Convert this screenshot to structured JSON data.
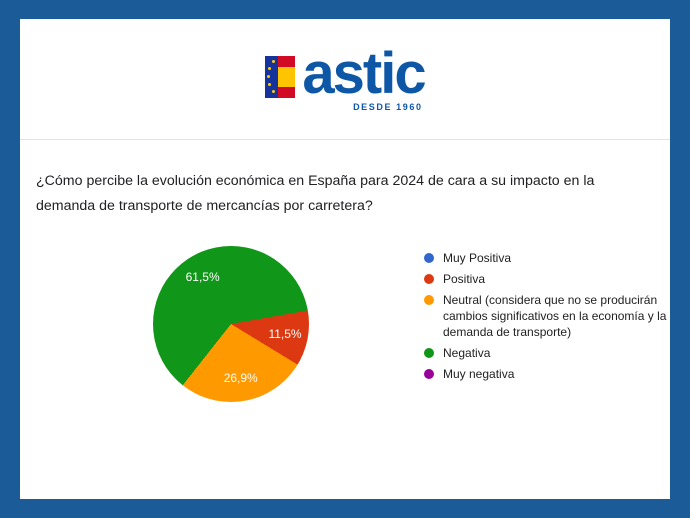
{
  "logo": {
    "brand": "astic",
    "tagline": "DESDE 1960"
  },
  "question": "¿Cómo percibe la evolución económica en España para 2024 de cara a su impacto en la demanda de transporte de mercancías por carretera?",
  "chart_data": {
    "type": "pie",
    "title": "¿Cómo percibe la evolución económica en España para 2024 de cara a su impacto en la demanda de transporte de mercancías por carretera?",
    "categories": [
      "Muy Positiva",
      "Positiva",
      "Neutral (considera que no se producirán cambios significativos en la economía y la demanda de transporte)",
      "Negativa",
      "Muy negativa"
    ],
    "values": [
      0,
      11.5,
      26.9,
      61.5,
      0
    ],
    "colors": [
      "#3366cc",
      "#dc3912",
      "#ff9900",
      "#109618",
      "#990099"
    ],
    "slice_labels": [
      {
        "index": 1,
        "text": "11,5%"
      },
      {
        "index": 2,
        "text": "26,9%"
      },
      {
        "index": 3,
        "text": "61,5%"
      }
    ],
    "start_angle_deg": 80,
    "legend_position": "right"
  },
  "colors": {
    "frame_blue": "#1b5b97",
    "brand_blue": "#0d57a6",
    "text": "#202124"
  }
}
